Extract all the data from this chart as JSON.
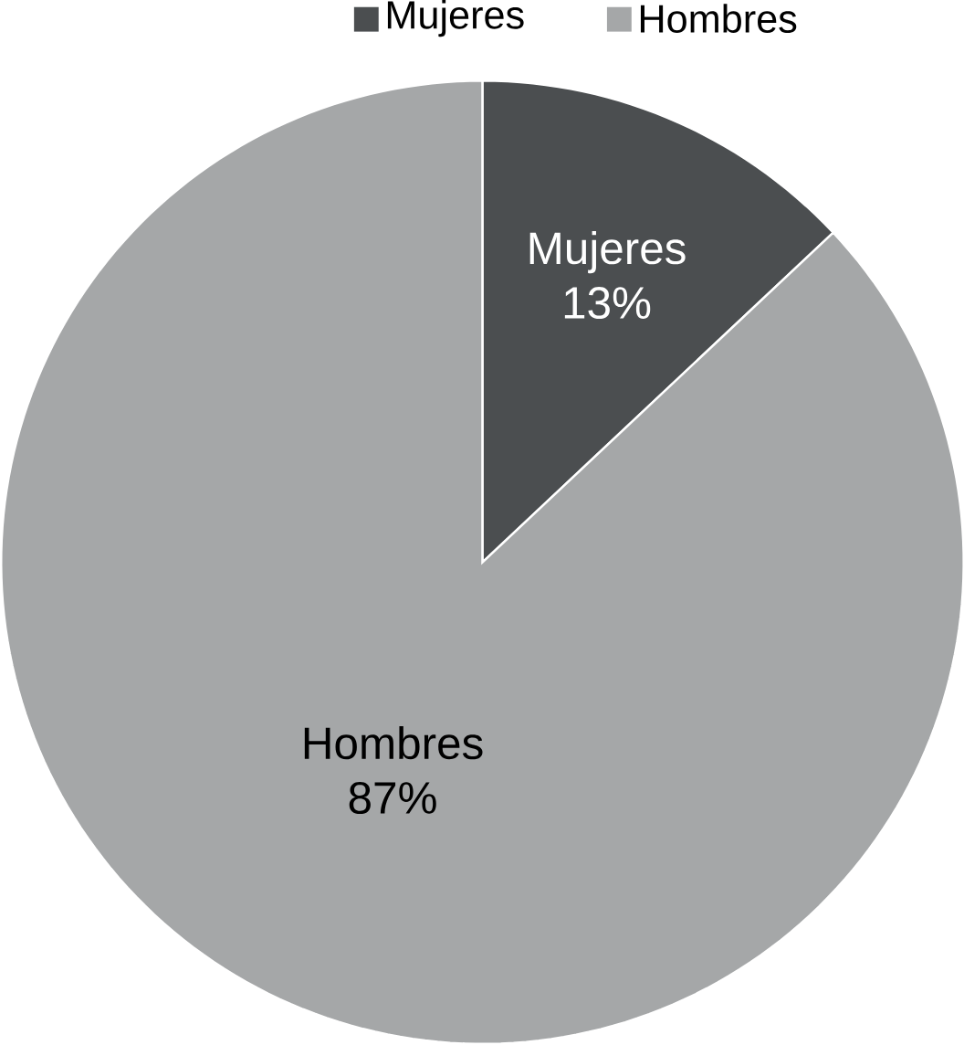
{
  "chart_data": {
    "type": "pie",
    "categories": [
      "Mujeres",
      "Hombres"
    ],
    "values": [
      13,
      87
    ],
    "colors": [
      "#4b4e50",
      "#a5a7a8"
    ],
    "value_labels": [
      "13%",
      "87%"
    ],
    "legend": "top"
  }
}
